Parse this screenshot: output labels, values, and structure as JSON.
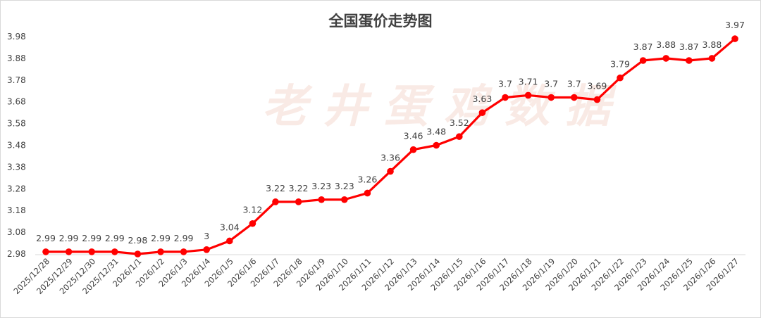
{
  "chart_data": {
    "type": "line",
    "title": "全国蛋价走势图",
    "watermark": "老井蛋鸡数据",
    "xlabel": "",
    "ylabel": "",
    "ylim": [
      2.98,
      3.98
    ],
    "yticks": [
      "2.98",
      "3.08",
      "3.18",
      "3.28",
      "3.38",
      "3.48",
      "3.58",
      "3.68",
      "3.78",
      "3.88",
      "3.98"
    ],
    "grid": false,
    "legend": "none",
    "color": "#ff0000",
    "categories": [
      "2025/12/28",
      "2025/12/29",
      "2025/12/30",
      "2025/12/31",
      "2026/1/1",
      "2026/1/2",
      "2026/1/3",
      "2026/1/4",
      "2026/1/5",
      "2026/1/6",
      "2026/1/7",
      "2026/1/8",
      "2026/1/9",
      "2026/1/10",
      "2026/1/11",
      "2026/1/12",
      "2026/1/13",
      "2026/1/14",
      "2026/1/15",
      "2026/1/16",
      "2026/1/17",
      "2026/1/18",
      "2026/1/19",
      "2026/1/20",
      "2026/1/21",
      "2026/1/22",
      "2026/1/23",
      "2026/1/24",
      "2026/1/25",
      "2026/1/26",
      "2026/1/27"
    ],
    "values": [
      2.99,
      2.99,
      2.99,
      2.99,
      2.98,
      2.99,
      2.99,
      3,
      3.04,
      3.12,
      3.22,
      3.22,
      3.23,
      3.23,
      3.26,
      3.36,
      3.46,
      3.48,
      3.52,
      3.63,
      3.7,
      3.71,
      3.7,
      3.7,
      3.69,
      3.79,
      3.87,
      3.88,
      3.87,
      3.88,
      3.97
    ],
    "data_labels": [
      "2.99",
      "2.99",
      "2.99",
      "2.99",
      "2.98",
      "2.99",
      "2.99",
      "3",
      "3.04",
      "3.12",
      "3.22",
      "3.22",
      "3.23",
      "3.23",
      "3.26",
      "3.36",
      "3.46",
      "3.48",
      "3.52",
      "3.63",
      "3.7",
      "3.71",
      "3.7",
      "3.7",
      "3.69",
      "3.79",
      "3.87",
      "3.88",
      "3.87",
      "3.88",
      "3.97"
    ]
  }
}
